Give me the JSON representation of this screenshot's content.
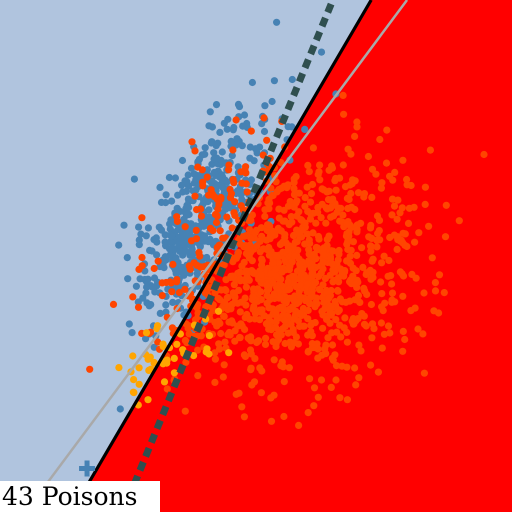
{
  "caption": "43 Poisons",
  "colors": {
    "region_class_a": "#b0c4de",
    "region_class_b": "#ff0000",
    "points_class_a": "#4682b4",
    "points_class_b": "#ff4500",
    "points_poison": "#ffa500",
    "boundary_current": "#000000",
    "boundary_dashed": "#2f4f4f",
    "boundary_reference": "#a9a9a9"
  },
  "chart_data": {
    "type": "scatter",
    "title": "",
    "xlabel": "",
    "ylabel": "",
    "xlim": [
      0,
      1
    ],
    "ylim": [
      0,
      1
    ],
    "grid": false,
    "legend": "none",
    "regions": [
      {
        "class": "a",
        "side": "above-left",
        "color": "#b0c4de"
      },
      {
        "class": "b",
        "side": "below-right",
        "color": "#ff0000"
      }
    ],
    "boundaries": [
      {
        "kind": "solid",
        "color": "#000000",
        "from": [
          0.14,
          0.0
        ],
        "to": [
          0.725,
          1.0
        ]
      },
      {
        "kind": "dashed",
        "color": "#2f4f4f",
        "from": [
          0.24,
          0.0
        ],
        "to": [
          0.65,
          1.0
        ]
      },
      {
        "kind": "solid-thin",
        "color": "#a9a9a9",
        "from": [
          0.05,
          0.0
        ],
        "to": [
          0.795,
          1.0
        ]
      }
    ],
    "series": [
      {
        "class": "a",
        "color": "#4682b4",
        "count": 500,
        "center": [
          0.39,
          0.57
        ],
        "spread": [
          0.065,
          0.11
        ],
        "corr": 0.72,
        "extra": [
          [
            0.17,
            0.085
          ]
        ]
      },
      {
        "class": "b",
        "color": "#ff4500",
        "count": 1100,
        "center": [
          0.57,
          0.47
        ],
        "spread": [
          0.12,
          0.11
        ],
        "corr": 0.2
      },
      {
        "class": "poison",
        "color": "#ffa500",
        "count": 43,
        "center": [
          0.31,
          0.3
        ],
        "spread": [
          0.05,
          0.04
        ],
        "corr": 0.5
      }
    ]
  }
}
